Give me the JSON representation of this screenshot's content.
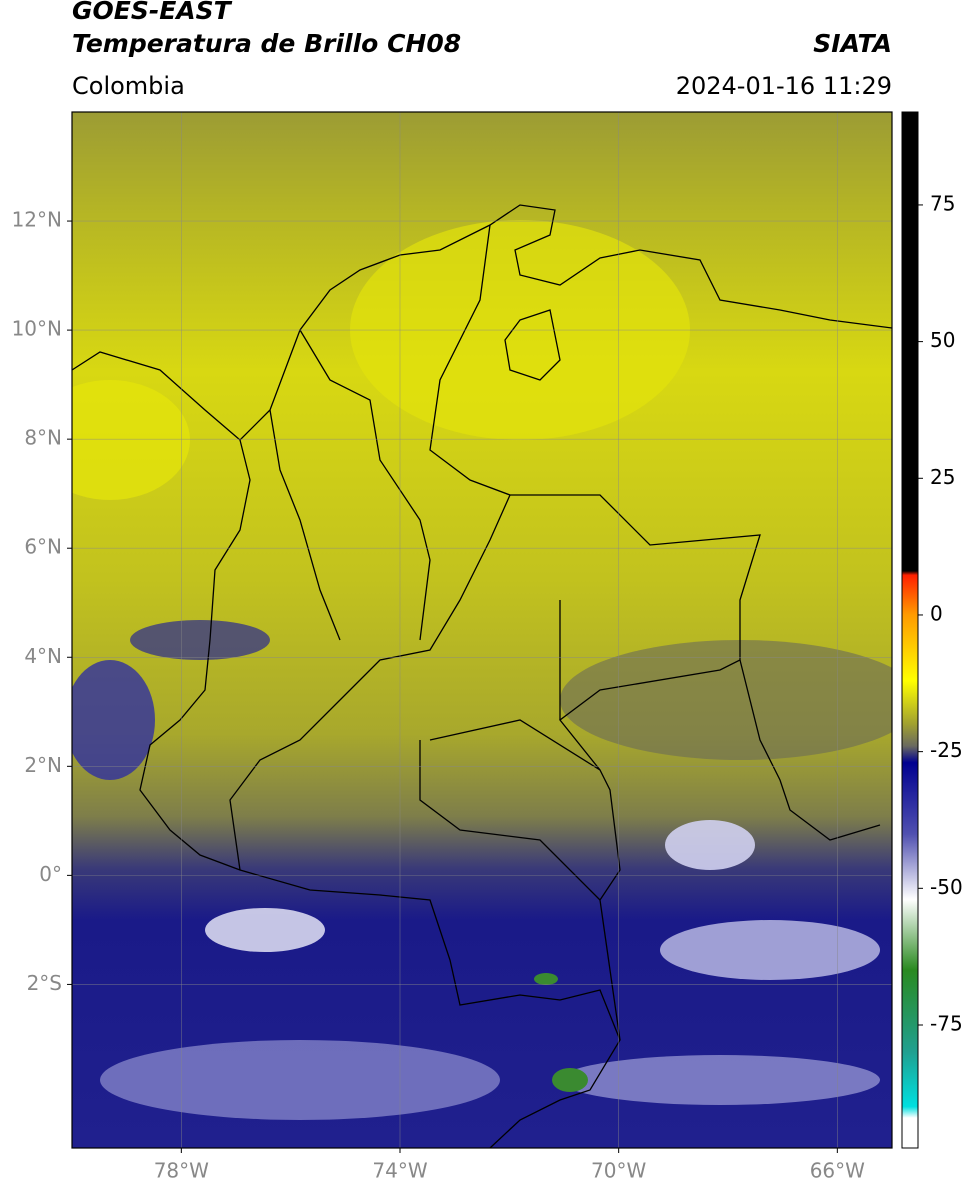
{
  "header": {
    "title": "GOES-EAST",
    "subtitle": "Temperatura de Brillo CH08",
    "region": "Colombia",
    "source": "SIATA",
    "datetime": "2024-01-16 11:29"
  },
  "map": {
    "xlim": [
      -80,
      -65
    ],
    "ylim": [
      -5,
      14
    ],
    "xticks": [
      {
        "value": -78,
        "label": "78°W"
      },
      {
        "value": -74,
        "label": "74°W"
      },
      {
        "value": -70,
        "label": "70°W"
      },
      {
        "value": -66,
        "label": "66°W"
      }
    ],
    "yticks": [
      {
        "value": 12,
        "label": "12°N"
      },
      {
        "value": 10,
        "label": "10°N"
      },
      {
        "value": 8,
        "label": "8°N"
      },
      {
        "value": 6,
        "label": "6°N"
      },
      {
        "value": 4,
        "label": "4°N"
      },
      {
        "value": 2,
        "label": "2°N"
      },
      {
        "value": 0,
        "label": "0°"
      },
      {
        "value": -2,
        "label": "2°S"
      }
    ],
    "grid": true
  },
  "colorbar": {
    "ylim": [
      -97.5,
      92
    ],
    "yticks": [
      75,
      50,
      25,
      0,
      -25,
      -50,
      -75
    ]
  }
}
